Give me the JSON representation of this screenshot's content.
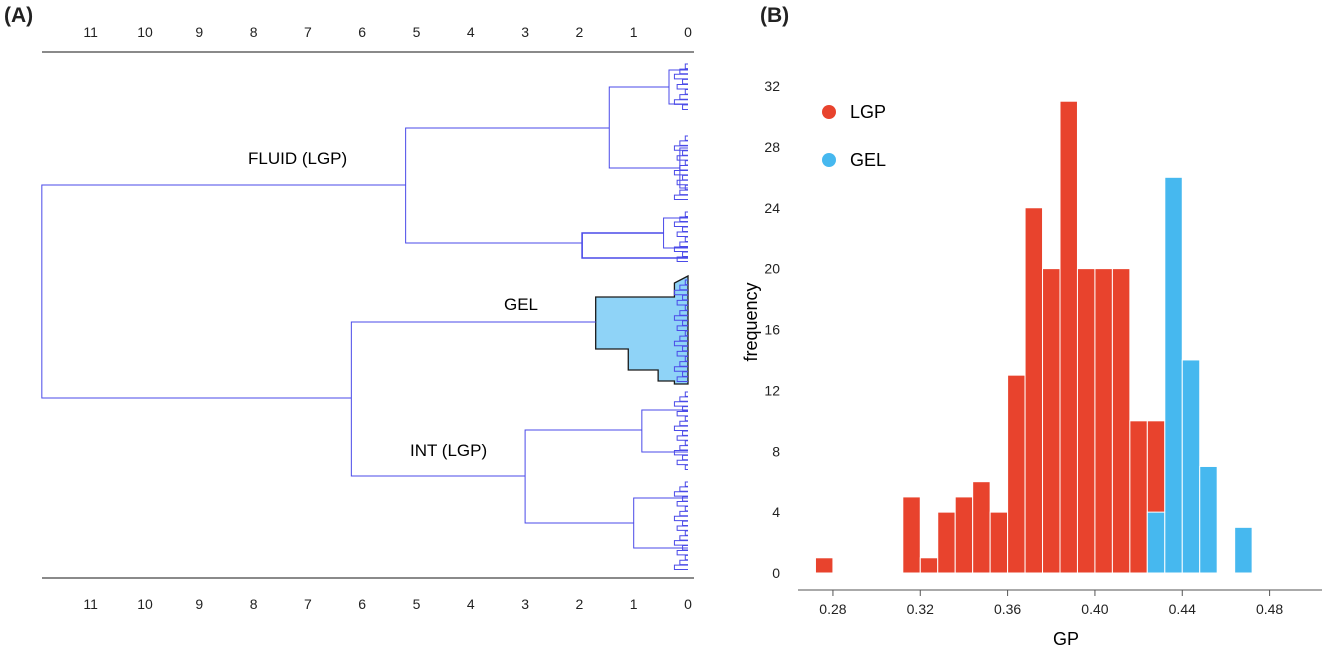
{
  "panel_a": {
    "label": "(A)",
    "ticks": [
      "11",
      "10",
      "9",
      "8",
      "7",
      "6",
      "5",
      "4",
      "3",
      "2",
      "1",
      "0"
    ],
    "cluster_labels": {
      "fluid": "FLUID (LGP)",
      "gel": "GEL",
      "int": "INT (LGP)"
    },
    "colors": {
      "line": "#4a4ae8",
      "gel_fill": "#8fd3f7",
      "gel_edge": "#1a1a1a"
    }
  },
  "panel_b": {
    "label": "(B)"
  },
  "chart_data": [
    {
      "type": "dendrogram",
      "xlim": [
        12,
        0
      ],
      "clusters": [
        {
          "label": "FLUID (LGP)",
          "merge_height": 5.2
        },
        {
          "label": "GEL",
          "merge_height": 1.7
        },
        {
          "label": "INT (LGP)",
          "merge_height": 3.0
        }
      ],
      "root_height": 11.9
    },
    {
      "type": "bar",
      "xlabel": "GP",
      "ylabel": "frequency",
      "ylim": [
        0,
        32
      ],
      "yticks": [
        "0",
        "4",
        "8",
        "12",
        "16",
        "20",
        "24",
        "28",
        "32"
      ],
      "xlim": [
        0.264,
        0.504
      ],
      "xticks": [
        "0.28",
        "0.32",
        "0.36",
        "0.40",
        "0.44",
        "0.48"
      ],
      "bin_width": 0.008,
      "legend_position": "top-left",
      "series": [
        {
          "name": "LGP",
          "color": "#e8432d",
          "bins": [
            [
              0.272,
              1
            ],
            [
              0.312,
              5
            ],
            [
              0.32,
              1
            ],
            [
              0.328,
              4
            ],
            [
              0.336,
              5
            ],
            [
              0.344,
              6
            ],
            [
              0.352,
              4
            ],
            [
              0.36,
              13
            ],
            [
              0.368,
              24
            ],
            [
              0.376,
              20
            ],
            [
              0.384,
              31
            ],
            [
              0.392,
              20
            ],
            [
              0.4,
              20
            ],
            [
              0.408,
              20
            ],
            [
              0.416,
              10
            ],
            [
              0.424,
              10
            ]
          ]
        },
        {
          "name": "GEL",
          "color": "#46b8ef",
          "bins": [
            [
              0.424,
              4
            ],
            [
              0.432,
              26
            ],
            [
              0.44,
              14
            ],
            [
              0.448,
              7
            ],
            [
              0.464,
              3
            ]
          ]
        }
      ]
    }
  ]
}
